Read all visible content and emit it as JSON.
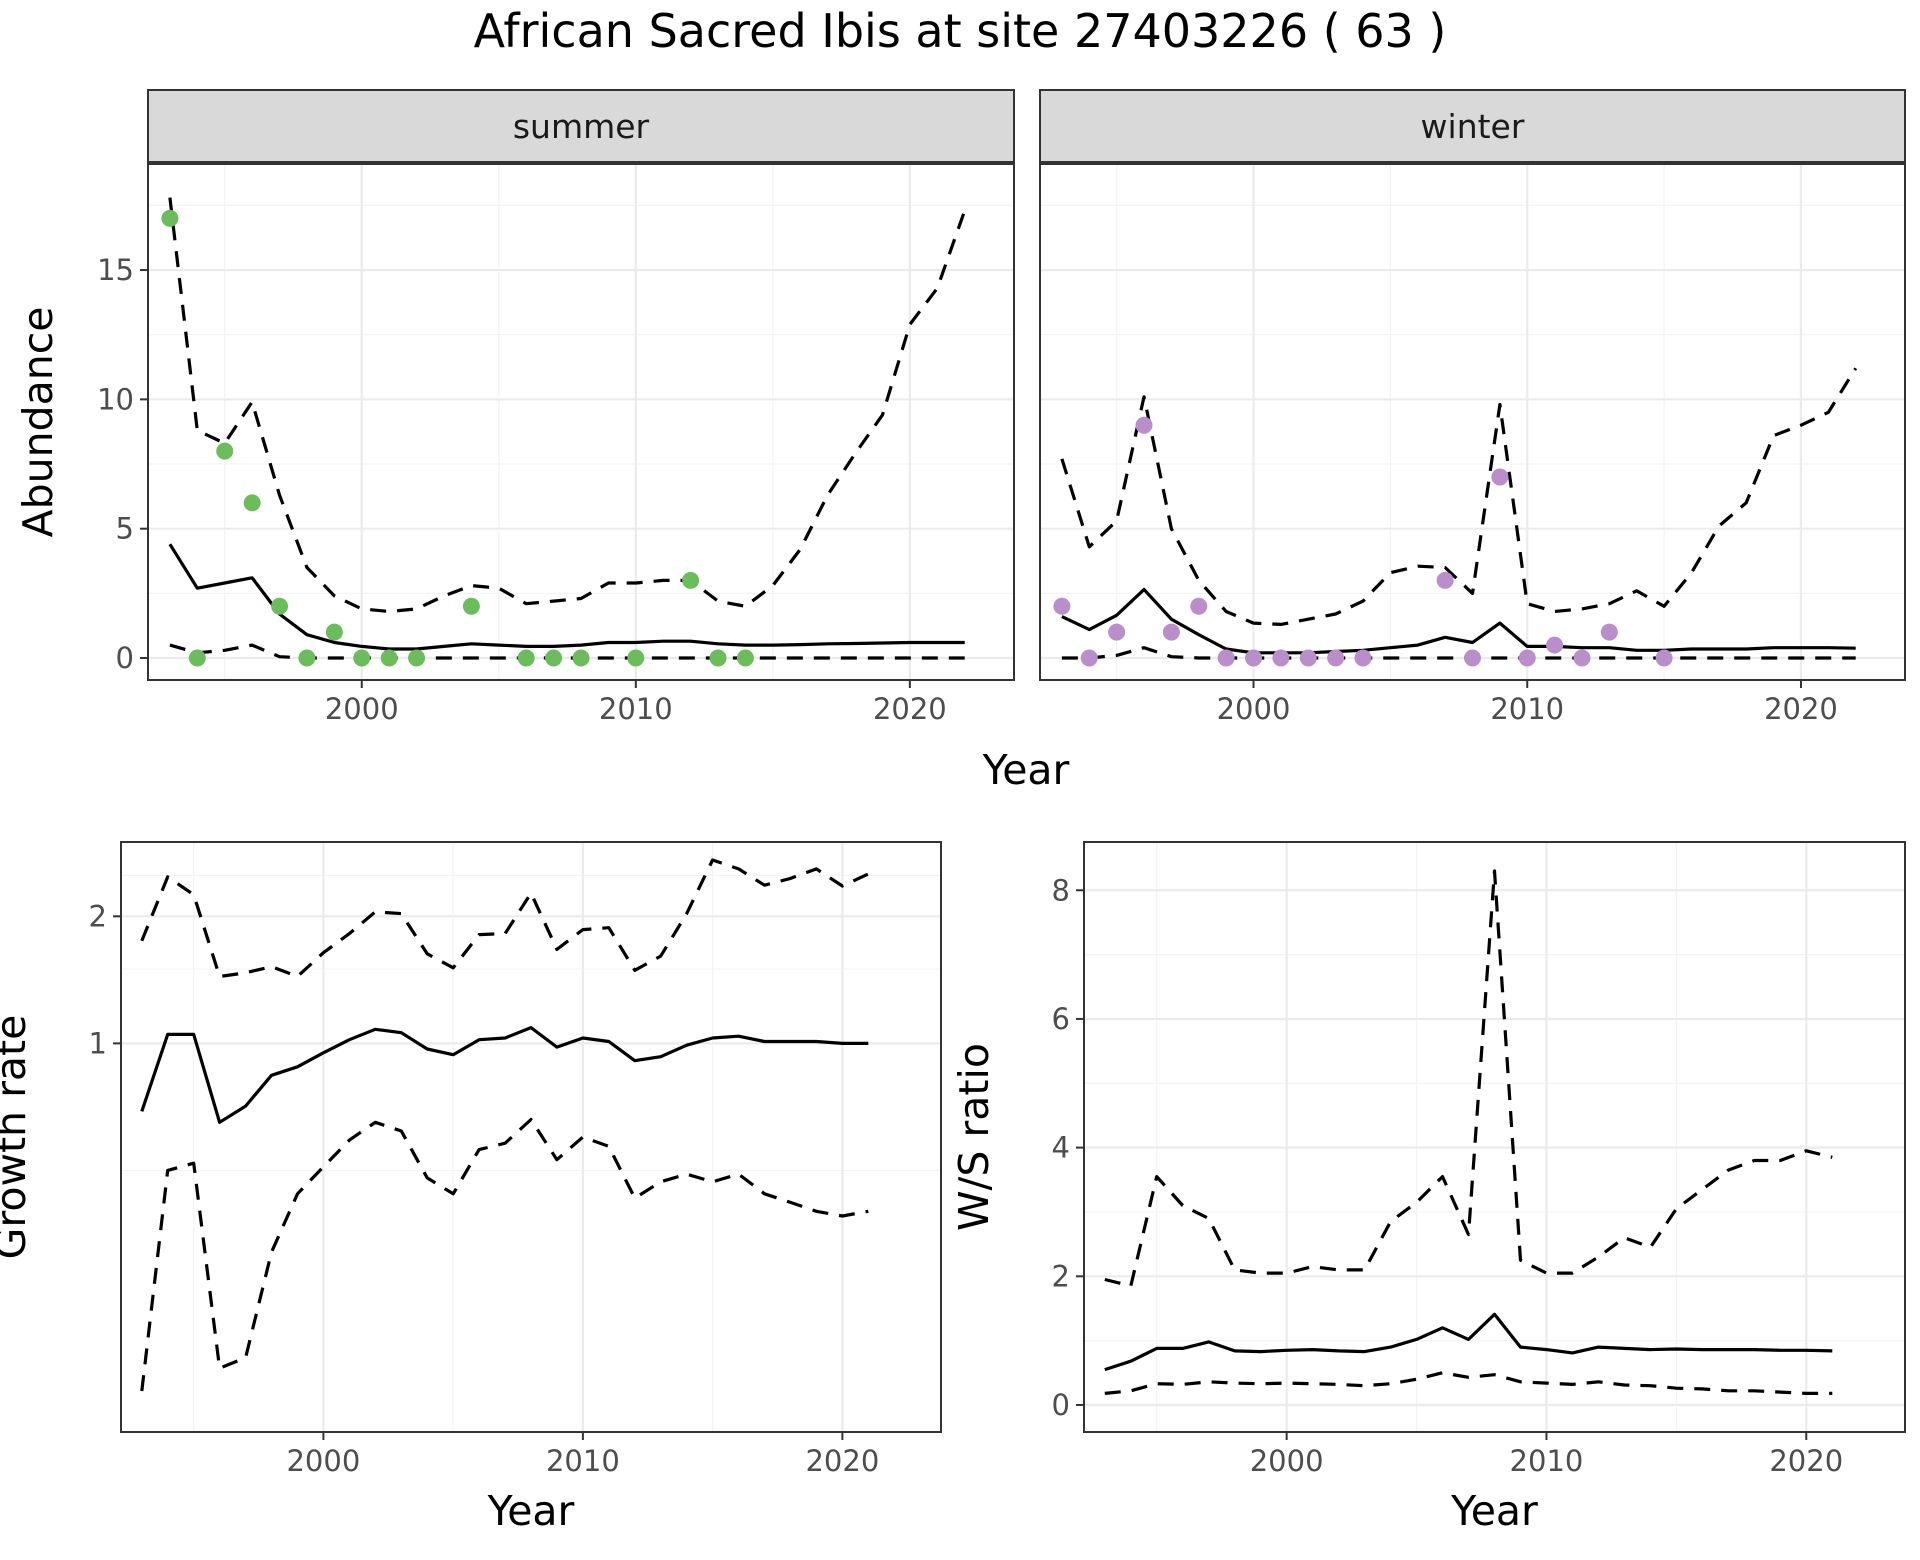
{
  "title": "African Sacred Ibis at site 27403226 ( 63 )",
  "colors": {
    "summer_points": "#6abd5a",
    "winter_points": "#b98ecb",
    "lines": "#000000"
  },
  "chart_data": [
    {
      "type": "scatter",
      "facet": "summer",
      "xlabel": "Year",
      "ylabel": "Abundance",
      "xlim": [
        1992.2,
        2023.8
      ],
      "ylim": [
        -0.85,
        19.1
      ],
      "xticks": [
        2000,
        2010,
        2020
      ],
      "yticks": [
        0,
        5,
        10,
        15
      ],
      "points": {
        "x": [
          1993,
          1994,
          1995,
          1996,
          1997,
          1998,
          1999,
          2000,
          2001,
          2002,
          2004,
          2006,
          2007,
          2008,
          2010,
          2012,
          2013,
          2014
        ],
        "y": [
          17,
          0,
          8,
          6,
          2,
          0,
          1,
          0,
          0,
          0,
          2,
          0,
          0,
          0,
          0,
          3,
          0,
          0
        ]
      },
      "estimate": {
        "x": [
          1993,
          1994,
          1995,
          1996,
          1997,
          1998,
          1999,
          2000,
          2001,
          2002,
          2003,
          2004,
          2005,
          2006,
          2007,
          2008,
          2009,
          2010,
          2011,
          2012,
          2013,
          2014,
          2015,
          2016,
          2017,
          2018,
          2019,
          2020,
          2021,
          2022
        ],
        "y": [
          4.4,
          2.7,
          2.9,
          3.1,
          1.7,
          0.9,
          0.6,
          0.45,
          0.35,
          0.35,
          0.45,
          0.55,
          0.5,
          0.45,
          0.45,
          0.5,
          0.6,
          0.6,
          0.65,
          0.65,
          0.55,
          0.5,
          0.5,
          0.52,
          0.55,
          0.56,
          0.58,
          0.6,
          0.6,
          0.6
        ]
      },
      "upper": {
        "x": [
          1993,
          1994,
          1995,
          1996,
          1997,
          1998,
          1999,
          2000,
          2001,
          2002,
          2003,
          2004,
          2005,
          2006,
          2007,
          2008,
          2009,
          2010,
          2011,
          2012,
          2013,
          2014,
          2015,
          2016,
          2017,
          2018,
          2019,
          2020,
          2021,
          2022
        ],
        "y": [
          17.8,
          8.8,
          8.3,
          9.9,
          6.3,
          3.5,
          2.4,
          1.9,
          1.8,
          1.9,
          2.4,
          2.8,
          2.7,
          2.1,
          2.2,
          2.3,
          2.9,
          2.9,
          3.0,
          3.0,
          2.2,
          2.0,
          2.8,
          4.2,
          6.3,
          7.9,
          9.4,
          12.9,
          14.3,
          17.3
        ]
      },
      "lower": {
        "x": [
          1993,
          1994,
          1995,
          1996,
          1997,
          1998,
          1999,
          2000,
          2001,
          2002,
          2003,
          2004,
          2005,
          2006,
          2007,
          2008,
          2009,
          2010,
          2011,
          2012,
          2013,
          2014,
          2015,
          2016,
          2017,
          2018,
          2019,
          2020,
          2021,
          2022
        ],
        "y": [
          0.5,
          0.2,
          0.3,
          0.5,
          0.05,
          0.0,
          0.0,
          0.0,
          0.0,
          0.0,
          0.0,
          0.0,
          0.0,
          0.0,
          0.0,
          0.0,
          0.0,
          0.0,
          0.0,
          0.0,
          0.0,
          0.0,
          0.0,
          0.0,
          0.0,
          0.0,
          0.0,
          0.0,
          0.0,
          0.0
        ]
      }
    },
    {
      "type": "scatter",
      "facet": "winter",
      "xlabel": "Year",
      "ylabel": "",
      "xlim": [
        1992.2,
        2023.8
      ],
      "ylim": [
        -0.85,
        19.1
      ],
      "xticks": [
        2000,
        2010,
        2020
      ],
      "yticks": [
        0,
        5,
        10,
        15
      ],
      "points": {
        "x": [
          1993,
          1994,
          1995,
          1996,
          1997,
          1998,
          1999,
          2000,
          2001,
          2002,
          2003,
          2004,
          2007,
          2008,
          2009,
          2010,
          2011,
          2012,
          2013,
          2015
        ],
        "y": [
          2,
          0,
          1,
          9,
          1,
          2,
          0,
          0,
          0,
          0,
          0,
          0,
          3,
          0,
          7,
          0,
          0.5,
          0,
          1,
          0
        ]
      },
      "estimate": {
        "x": [
          1993,
          1994,
          1995,
          1996,
          1997,
          1998,
          1999,
          2000,
          2001,
          2002,
          2003,
          2004,
          2005,
          2006,
          2007,
          2008,
          2009,
          2010,
          2011,
          2012,
          2013,
          2014,
          2015,
          2016,
          2017,
          2018,
          2019,
          2020,
          2021,
          2022
        ],
        "y": [
          1.6,
          1.1,
          1.65,
          2.65,
          1.5,
          0.9,
          0.35,
          0.2,
          0.2,
          0.2,
          0.25,
          0.3,
          0.4,
          0.5,
          0.8,
          0.6,
          1.35,
          0.45,
          0.45,
          0.4,
          0.4,
          0.3,
          0.3,
          0.35,
          0.35,
          0.35,
          0.4,
          0.4,
          0.4,
          0.38
        ]
      },
      "upper": {
        "x": [
          1993,
          1994,
          1995,
          1996,
          1997,
          1998,
          1999,
          2000,
          2001,
          2002,
          2003,
          2004,
          2005,
          2006,
          2007,
          2008,
          2009,
          2010,
          2011,
          2012,
          2013,
          2014,
          2015,
          2016,
          2017,
          2018,
          2019,
          2020,
          2021,
          2022
        ],
        "y": [
          7.7,
          4.3,
          5.3,
          10.1,
          5.0,
          3.0,
          1.8,
          1.35,
          1.3,
          1.5,
          1.7,
          2.2,
          3.3,
          3.55,
          3.5,
          2.5,
          9.8,
          2.1,
          1.8,
          1.9,
          2.1,
          2.6,
          2.0,
          3.3,
          5.1,
          6.0,
          8.6,
          9.0,
          9.5,
          11.2
        ]
      },
      "lower": {
        "x": [
          1993,
          1994,
          1995,
          1996,
          1997,
          1998,
          1999,
          2000,
          2001,
          2002,
          2003,
          2004,
          2005,
          2006,
          2007,
          2008,
          2009,
          2010,
          2011,
          2012,
          2013,
          2014,
          2015,
          2016,
          2017,
          2018,
          2019,
          2020,
          2021,
          2022
        ],
        "y": [
          0.0,
          0.0,
          0.1,
          0.4,
          0.05,
          0.0,
          0.0,
          0.0,
          0.0,
          0.0,
          0.0,
          0.0,
          0.0,
          0.0,
          0.0,
          0.0,
          0.0,
          0.0,
          0.0,
          0.0,
          0.0,
          0.0,
          0.0,
          0.0,
          0.0,
          0.0,
          0.0,
          0.0,
          0.0,
          0.0
        ]
      }
    },
    {
      "type": "line",
      "facet": "",
      "xlabel": "Year",
      "ylabel": "Growth rate",
      "log_y": true,
      "xlim": [
        1992.2,
        2023.8
      ],
      "ylim": [
        0.12,
        3.0
      ],
      "xticks": [
        2000,
        2010,
        2020
      ],
      "yticks": [
        1,
        2
      ],
      "estimate": {
        "x": [
          1993,
          1994,
          1995,
          1996,
          1997,
          1998,
          1999,
          2000,
          2001,
          2002,
          2003,
          2004,
          2005,
          2006,
          2007,
          2008,
          2009,
          2010,
          2011,
          2012,
          2013,
          2014,
          2015,
          2016,
          2017,
          2018,
          2019,
          2020,
          2021
        ],
        "y": [
          0.69,
          1.05,
          1.05,
          0.65,
          0.71,
          0.84,
          0.88,
          0.95,
          1.02,
          1.08,
          1.06,
          0.97,
          0.94,
          1.02,
          1.03,
          1.09,
          0.98,
          1.03,
          1.01,
          0.91,
          0.93,
          0.99,
          1.03,
          1.04,
          1.01,
          1.01,
          1.01,
          1.0,
          1.0
        ]
      },
      "upper": {
        "x": [
          1993,
          1994,
          1995,
          1996,
          1997,
          1998,
          1999,
          2000,
          2001,
          2002,
          2003,
          2004,
          2005,
          2006,
          2007,
          2008,
          2009,
          2010,
          2011,
          2012,
          2013,
          2014,
          2015,
          2016,
          2017,
          2018,
          2019,
          2020,
          2021
        ],
        "y": [
          1.75,
          2.48,
          2.25,
          1.44,
          1.47,
          1.52,
          1.44,
          1.64,
          1.82,
          2.05,
          2.03,
          1.63,
          1.51,
          1.81,
          1.82,
          2.27,
          1.67,
          1.86,
          1.88,
          1.49,
          1.61,
          2.03,
          2.72,
          2.59,
          2.37,
          2.46,
          2.59,
          2.36,
          2.52
        ]
      },
      "lower": {
        "x": [
          1993,
          1994,
          1995,
          1996,
          1997,
          1998,
          1999,
          2000,
          2001,
          2002,
          2003,
          2004,
          2005,
          2006,
          2007,
          2008,
          2009,
          2010,
          2011,
          2012,
          2013,
          2014,
          2015,
          2016,
          2017,
          2018,
          2019,
          2020,
          2021
        ],
        "y": [
          0.15,
          0.5,
          0.52,
          0.17,
          0.18,
          0.32,
          0.44,
          0.51,
          0.59,
          0.65,
          0.62,
          0.48,
          0.44,
          0.56,
          0.58,
          0.66,
          0.53,
          0.6,
          0.57,
          0.43,
          0.47,
          0.49,
          0.47,
          0.49,
          0.44,
          0.42,
          0.4,
          0.39,
          0.4
        ]
      }
    },
    {
      "type": "line",
      "facet": "",
      "xlabel": "Year",
      "ylabel": "W/S ratio",
      "xlim": [
        1992.2,
        2023.8
      ],
      "ylim": [
        -0.42,
        8.75
      ],
      "xticks": [
        2000,
        2010,
        2020
      ],
      "yticks": [
        0,
        2,
        4,
        6,
        8
      ],
      "estimate": {
        "x": [
          1993,
          1994,
          1995,
          1996,
          1997,
          1998,
          1999,
          2000,
          2001,
          2002,
          2003,
          2004,
          2005,
          2006,
          2007,
          2008,
          2009,
          2010,
          2011,
          2012,
          2013,
          2014,
          2015,
          2016,
          2017,
          2018,
          2019,
          2020,
          2021
        ],
        "y": [
          0.55,
          0.68,
          0.88,
          0.88,
          0.98,
          0.84,
          0.83,
          0.85,
          0.86,
          0.84,
          0.83,
          0.9,
          1.02,
          1.2,
          1.02,
          1.41,
          0.9,
          0.86,
          0.81,
          0.9,
          0.88,
          0.86,
          0.87,
          0.86,
          0.86,
          0.86,
          0.85,
          0.85,
          0.84
        ]
      },
      "upper": {
        "x": [
          1993,
          1994,
          1995,
          1996,
          1997,
          1998,
          1999,
          2000,
          2001,
          2002,
          2003,
          2004,
          2005,
          2006,
          2007,
          2008,
          2009,
          2010,
          2011,
          2012,
          2013,
          2014,
          2015,
          2016,
          2017,
          2018,
          2019,
          2020,
          2021
        ],
        "y": [
          1.95,
          1.85,
          3.55,
          3.1,
          2.9,
          2.1,
          2.05,
          2.05,
          2.15,
          2.1,
          2.1,
          2.85,
          3.15,
          3.55,
          2.65,
          8.3,
          2.25,
          2.05,
          2.05,
          2.3,
          2.6,
          2.45,
          3.05,
          3.35,
          3.65,
          3.8,
          3.8,
          3.95,
          3.85
        ]
      },
      "lower": {
        "x": [
          1993,
          1994,
          1995,
          1996,
          1997,
          1998,
          1999,
          2000,
          2001,
          2002,
          2003,
          2004,
          2005,
          2006,
          2007,
          2008,
          2009,
          2010,
          2011,
          2012,
          2013,
          2014,
          2015,
          2016,
          2017,
          2018,
          2019,
          2020,
          2021
        ],
        "y": [
          0.18,
          0.22,
          0.33,
          0.32,
          0.36,
          0.34,
          0.33,
          0.34,
          0.33,
          0.32,
          0.3,
          0.33,
          0.4,
          0.5,
          0.43,
          0.47,
          0.36,
          0.34,
          0.32,
          0.36,
          0.31,
          0.3,
          0.26,
          0.25,
          0.22,
          0.22,
          0.2,
          0.18,
          0.18
        ]
      }
    }
  ]
}
